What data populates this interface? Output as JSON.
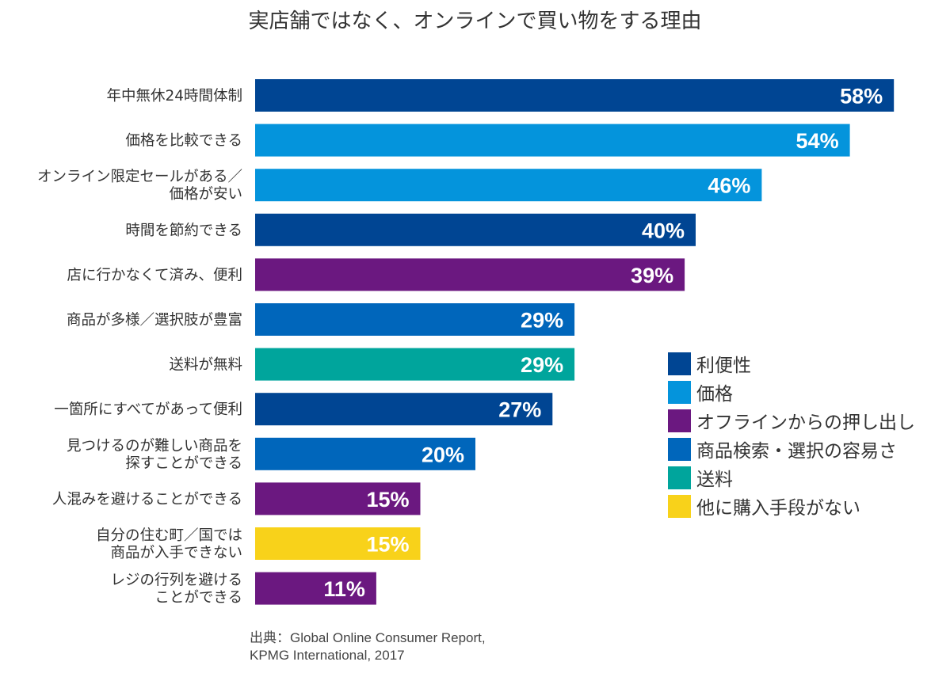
{
  "title": "実店舗ではなく、オンラインで買い物をする理由",
  "source": {
    "line1": "出典：Global Online Consumer Report,",
    "line2": "KPMG International, 2017"
  },
  "colors": {
    "利便性": "#004593",
    "価格": "#0494DC",
    "オフラインからの押し出し": "#6B1880",
    "商品検索・選択の容易さ": "#0066BB",
    "送料": "#00A59C",
    "他に購入手段がない": "#F8D21A"
  },
  "legend": [
    {
      "label": "利便性",
      "group": "利便性"
    },
    {
      "label": "価格",
      "group": "価格"
    },
    {
      "label": "オフラインからの押し出し",
      "group": "オフラインからの押し出し"
    },
    {
      "label": "商品検索・選択の容易さ",
      "group": "商品検索・選択の容易さ"
    },
    {
      "label": "送料",
      "group": "送料"
    },
    {
      "label": "他に購入手段がない",
      "group": "他に購入手段がない"
    }
  ],
  "chart_data": {
    "type": "bar",
    "orientation": "horizontal",
    "unit": "%",
    "xlim": [
      0,
      60
    ],
    "grid": false,
    "legend_position": "right",
    "categories": [
      "年中無休24時間体制",
      "価格を比較できる",
      "オンライン限定セールがある／価格が安い",
      "時間を節約できる",
      "店に行かなくて済み、便利",
      "商品が多様／選択肢が豊富",
      "送料が無料",
      "一箇所にすべてがあって便利",
      "見つけるのが難しい商品を探すことができる",
      "人混みを避けることができる",
      "自分の住む町／国では商品が入手できない",
      "レジの行列を避けることができる"
    ],
    "category_lines": [
      [
        "年中無休24時間体制"
      ],
      [
        "価格を比較できる"
      ],
      [
        "オンライン限定セールがある／",
        "価格が安い"
      ],
      [
        "時間を節約できる"
      ],
      [
        "店に行かなくて済み、便利"
      ],
      [
        "商品が多様／選択肢が豊富"
      ],
      [
        "送料が無料"
      ],
      [
        "一箇所にすべてがあって便利"
      ],
      [
        "見つけるのが難しい商品を",
        "探すことができる"
      ],
      [
        "人混みを避けることができる"
      ],
      [
        "自分の住む町／国では",
        "商品が入手できない"
      ],
      [
        "レジの行列を避ける",
        "ことができる"
      ]
    ],
    "values": [
      58,
      54,
      46,
      40,
      39,
      29,
      29,
      27,
      20,
      15,
      15,
      11
    ],
    "value_labels": [
      "58%",
      "54%",
      "46%",
      "40%",
      "39%",
      "29%",
      "29%",
      "27%",
      "20%",
      "15%",
      "15%",
      "11%"
    ],
    "groups": [
      "利便性",
      "価格",
      "価格",
      "利便性",
      "オフラインからの押し出し",
      "商品検索・選択の容易さ",
      "送料",
      "利便性",
      "商品検索・選択の容易さ",
      "オフラインからの押し出し",
      "他に購入手段がない",
      "オフラインからの押し出し"
    ]
  }
}
